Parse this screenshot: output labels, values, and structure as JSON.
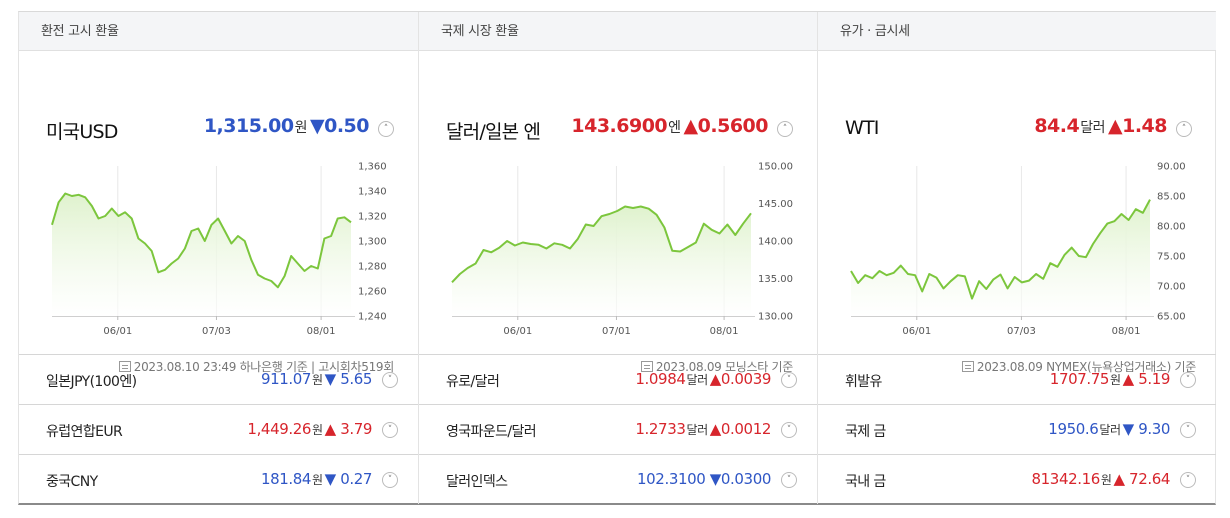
{
  "columns": [
    {
      "header": "환전 고시 환율",
      "main": {
        "name": "미국USD",
        "price": "1,315.00",
        "unit": "원",
        "arrow": "▼",
        "change": "0.50",
        "dir": "down"
      },
      "chart": {
        "ylabels": [
          "1,360",
          "1,340",
          "1,320",
          "1,300",
          "1,280",
          "1,260",
          "1,240"
        ],
        "xlabels": [
          "06/01",
          "07/03",
          "08/01"
        ]
      },
      "source": "2023.08.10 23:49 하나은행 기준 | 고시회차519회",
      "rows": [
        {
          "name": "일본JPY(100엔)",
          "price": "911.07",
          "unit": "원",
          "arrow": "▼",
          "change": "5.65",
          "dir": "down"
        },
        {
          "name": "유럽연합EUR",
          "price": "1,449.26",
          "unit": "원",
          "arrow": "▲",
          "change": "3.79",
          "dir": "up"
        },
        {
          "name": "중국CNY",
          "price": "181.84",
          "unit": "원",
          "arrow": "▼",
          "change": "0.27",
          "dir": "down"
        }
      ]
    },
    {
      "header": "국제 시장 환율",
      "main": {
        "name": "달러/일본 엔",
        "price": "143.6900",
        "unit": "엔",
        "arrow": "▲",
        "change": "0.5600",
        "dir": "up"
      },
      "chart": {
        "ylabels": [
          "150.00",
          "145.00",
          "140.00",
          "135.00",
          "130.00"
        ],
        "xlabels": [
          "06/01",
          "07/01",
          "08/01"
        ]
      },
      "source": "2023.08.09 모닝스타 기준",
      "rows": [
        {
          "name": "유로/달러",
          "price": "1.0984",
          "unit": "달러",
          "arrow": "▲",
          "change": "0.0039",
          "dir": "up"
        },
        {
          "name": "영국파운드/달러",
          "price": "1.2733",
          "unit": "달러",
          "arrow": "▲",
          "change": "0.0012",
          "dir": "up"
        },
        {
          "name": "달러인덱스",
          "price": "102.3100",
          "unit": "",
          "arrow": "▼",
          "change": "0.0300",
          "dir": "down"
        }
      ]
    },
    {
      "header": "유가 · 금시세",
      "main": {
        "name": "WTI",
        "price": "84.4",
        "unit": "달러",
        "arrow": "▲",
        "change": "1.48",
        "dir": "up"
      },
      "chart": {
        "ylabels": [
          "90.00",
          "85.00",
          "80.00",
          "75.00",
          "70.00",
          "65.00"
        ],
        "xlabels": [
          "06/01",
          "07/03",
          "08/01"
        ]
      },
      "source": "2023.08.09 NYMEX(뉴욕상업거래소) 기준",
      "rows": [
        {
          "name": "휘발유",
          "price": "1707.75",
          "unit": "원",
          "arrow": "▲",
          "change": "5.19",
          "dir": "up"
        },
        {
          "name": "국제 금",
          "price": "1950.6",
          "unit": "달러",
          "arrow": "▼",
          "change": "9.30",
          "dir": "down"
        },
        {
          "name": "국내 금",
          "price": "81342.16",
          "unit": "원",
          "arrow": "▲",
          "change": "72.64",
          "dir": "up"
        }
      ]
    }
  ],
  "colors": {
    "up": "#d7252c",
    "down": "#2f56c5",
    "line": "#7cc63d",
    "fill_top": "#dff2cd"
  },
  "chart_data": [
    {
      "type": "area",
      "ylim": [
        1240,
        1360
      ],
      "x_ticks": [
        "06/01",
        "07/03",
        "08/01"
      ],
      "values": [
        1313,
        1331,
        1338,
        1336,
        1337,
        1335,
        1328,
        1318,
        1320,
        1326,
        1320,
        1323,
        1318,
        1302,
        1298,
        1292,
        1275,
        1277,
        1282,
        1286,
        1294,
        1308,
        1310,
        1300,
        1313,
        1318,
        1308,
        1298,
        1304,
        1300,
        1285,
        1273,
        1270,
        1268,
        1263,
        1272,
        1288,
        1282,
        1276,
        1280,
        1278,
        1302,
        1304,
        1318,
        1319,
        1315
      ]
    },
    {
      "type": "area",
      "ylim": [
        130,
        150
      ],
      "x_ticks": [
        "06/01",
        "07/01",
        "08/01"
      ],
      "values": [
        134.5,
        135.6,
        136.4,
        137.0,
        138.8,
        138.5,
        139.1,
        140.0,
        139.4,
        139.8,
        139.6,
        139.5,
        139.0,
        139.7,
        139.5,
        139.0,
        140.3,
        142.2,
        142.0,
        143.3,
        143.6,
        144.0,
        144.6,
        144.4,
        144.6,
        144.3,
        143.5,
        141.8,
        138.7,
        138.6,
        139.2,
        139.8,
        142.3,
        141.5,
        141.0,
        142.2,
        140.8,
        142.3,
        143.7
      ]
    },
    {
      "type": "area",
      "ylim": [
        65,
        90
      ],
      "x_ticks": [
        "06/01",
        "07/03",
        "08/01"
      ],
      "values": [
        72.5,
        70.5,
        71.8,
        71.3,
        72.5,
        71.8,
        72.2,
        73.4,
        72.0,
        71.8,
        69.1,
        72.0,
        71.4,
        69.6,
        70.8,
        71.8,
        71.6,
        67.9,
        70.8,
        69.5,
        71.1,
        71.9,
        69.6,
        71.5,
        70.6,
        70.9,
        72.0,
        71.2,
        73.8,
        73.2,
        75.2,
        76.4,
        75.0,
        74.8,
        77.0,
        78.8,
        80.4,
        80.8,
        82.0,
        81.0,
        82.8,
        82.2,
        84.4
      ]
    }
  ]
}
